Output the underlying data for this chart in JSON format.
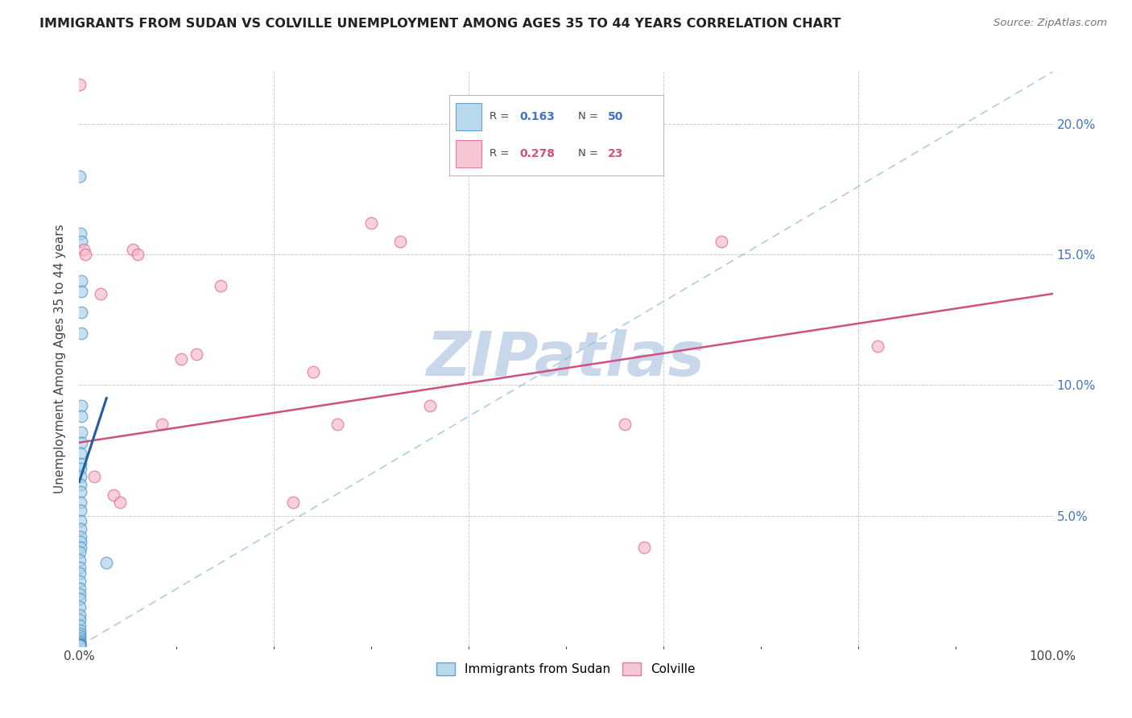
{
  "title": "IMMIGRANTS FROM SUDAN VS COLVILLE UNEMPLOYMENT AMONG AGES 35 TO 44 YEARS CORRELATION CHART",
  "source": "Source: ZipAtlas.com",
  "ylabel": "Unemployment Among Ages 35 to 44 years",
  "ylabel_right_ticks": [
    "",
    "5.0%",
    "10.0%",
    "15.0%",
    "20.0%"
  ],
  "ylabel_right_vals": [
    0.0,
    5.0,
    10.0,
    15.0,
    20.0
  ],
  "legend_label1": "Immigrants from Sudan",
  "legend_label2": "Colville",
  "blue_color": "#a8d0e8",
  "pink_color": "#f4b8c8",
  "blue_edge_color": "#4a90c4",
  "pink_edge_color": "#e06090",
  "blue_line_color": "#2060a0",
  "pink_line_color": "#d05080",
  "blue_dashed_color": "#8ab8d8",
  "watermark_color": "#c8d8ea",
  "blue_r": "0.163",
  "blue_n": "50",
  "pink_r": "0.278",
  "pink_n": "23",
  "blue_scatter_x": [
    0.05,
    0.15,
    0.22,
    0.18,
    0.25,
    0.2,
    0.22,
    0.2,
    0.2,
    0.18,
    0.18,
    0.15,
    0.15,
    0.13,
    0.13,
    0.12,
    0.12,
    0.1,
    0.1,
    0.1,
    0.1,
    0.1,
    0.09,
    0.09,
    0.08,
    0.08,
    0.07,
    0.07,
    0.07,
    0.07,
    0.06,
    0.06,
    0.06,
    0.06,
    0.05,
    0.05,
    0.05,
    0.05,
    0.05,
    0.05,
    0.04,
    0.04,
    0.04,
    0.03,
    0.03,
    0.03,
    0.03,
    0.03,
    0.03,
    2.8
  ],
  "blue_scatter_y": [
    18.0,
    15.8,
    15.5,
    14.0,
    13.6,
    12.8,
    12.0,
    9.2,
    8.8,
    8.2,
    7.8,
    7.4,
    7.0,
    6.8,
    6.5,
    6.2,
    5.9,
    5.5,
    5.2,
    4.8,
    4.5,
    4.2,
    4.0,
    3.8,
    3.6,
    3.3,
    3.0,
    2.8,
    2.5,
    2.2,
    2.0,
    1.8,
    1.5,
    1.2,
    1.0,
    0.8,
    0.6,
    0.5,
    0.4,
    0.3,
    0.2,
    0.15,
    0.1,
    0.08,
    0.07,
    0.06,
    0.05,
    0.04,
    0.02,
    3.2
  ],
  "pink_scatter_x": [
    0.05,
    0.5,
    0.6,
    1.5,
    2.2,
    3.5,
    4.2,
    5.5,
    6.0,
    8.5,
    10.5,
    12.0,
    14.5,
    22.0,
    24.0,
    26.5,
    30.0,
    33.0,
    36.0,
    56.0,
    58.0,
    66.0,
    82.0
  ],
  "pink_scatter_y": [
    21.5,
    15.2,
    15.0,
    6.5,
    13.5,
    5.8,
    5.5,
    15.2,
    15.0,
    8.5,
    11.0,
    11.2,
    13.8,
    5.5,
    10.5,
    8.5,
    16.2,
    15.5,
    9.2,
    8.5,
    3.8,
    15.5,
    11.5
  ],
  "xlim": [
    0,
    100
  ],
  "ylim": [
    0,
    22
  ],
  "figsize": [
    14.06,
    8.92
  ],
  "dpi": 100,
  "blue_line_x": [
    0,
    2.8
  ],
  "blue_line_y": [
    6.3,
    9.5
  ],
  "pink_line_x": [
    0,
    100
  ],
  "pink_line_y": [
    7.8,
    13.5
  ],
  "dashed_line_x": [
    0,
    100
  ],
  "dashed_line_y": [
    0,
    22
  ]
}
